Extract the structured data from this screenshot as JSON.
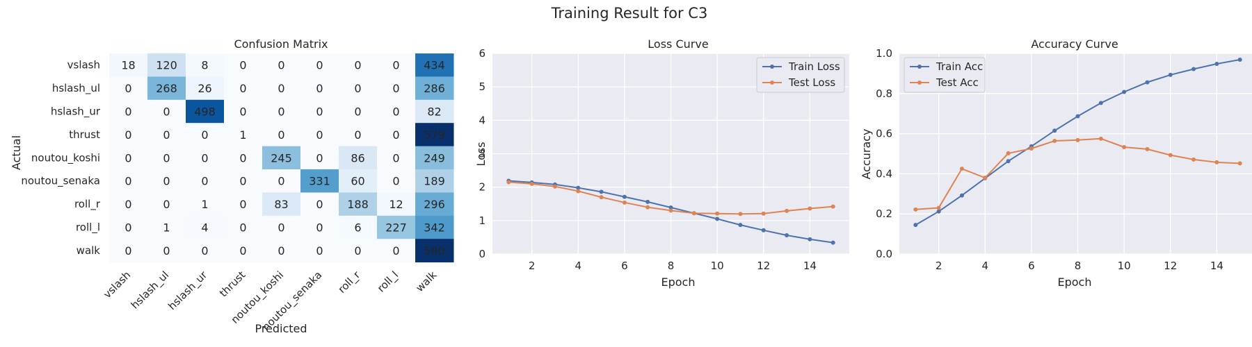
{
  "suptitle": "Training Result for C3",
  "colors": {
    "train": "#4c72b0",
    "test": "#dd8452",
    "plot_bg": "#eaeaf2",
    "grid": "#ffffff",
    "cmap_low": "#f7fbff",
    "cmap_high": "#08306b"
  },
  "chart_data": [
    {
      "type": "heatmap",
      "title": "Confusion Matrix",
      "xlabel": "Predicted",
      "ylabel": "Actual",
      "labels": [
        "vslash",
        "hslash_ul",
        "hslash_ur",
        "thrust",
        "noutou_koshi",
        "noutou_senaka",
        "roll_r",
        "roll_l",
        "walk"
      ],
      "matrix": [
        [
          18,
          120,
          8,
          0,
          0,
          0,
          0,
          0,
          434
        ],
        [
          0,
          268,
          26,
          0,
          0,
          0,
          0,
          0,
          286
        ],
        [
          0,
          0,
          498,
          0,
          0,
          0,
          0,
          0,
          82
        ],
        [
          0,
          0,
          0,
          1,
          0,
          0,
          0,
          0,
          579
        ],
        [
          0,
          0,
          0,
          0,
          245,
          0,
          86,
          0,
          249
        ],
        [
          0,
          0,
          0,
          0,
          0,
          331,
          60,
          0,
          189
        ],
        [
          0,
          0,
          1,
          0,
          83,
          0,
          188,
          12,
          296
        ],
        [
          0,
          1,
          4,
          0,
          0,
          0,
          6,
          227,
          342
        ],
        [
          0,
          0,
          0,
          0,
          0,
          0,
          0,
          0,
          580
        ]
      ],
      "vmax": 580
    },
    {
      "type": "line",
      "title": "Loss Curve",
      "xlabel": "Epoch",
      "ylabel": "Loss",
      "x": [
        1,
        2,
        3,
        4,
        5,
        6,
        7,
        8,
        9,
        10,
        11,
        12,
        13,
        14,
        15
      ],
      "xlim": [
        0.3,
        15.7
      ],
      "ylim": [
        0,
        6
      ],
      "xticks": [
        2,
        4,
        6,
        8,
        10,
        12,
        14
      ],
      "yticks": [
        0,
        1,
        2,
        3,
        4,
        5,
        6
      ],
      "legend_position": "upper right",
      "series": [
        {
          "name": "Train Loss",
          "values": [
            2.19,
            2.14,
            2.08,
            1.98,
            1.86,
            1.71,
            1.56,
            1.39,
            1.22,
            1.05,
            0.87,
            0.71,
            0.56,
            0.44,
            0.34
          ]
        },
        {
          "name": "Test Loss",
          "values": [
            2.15,
            2.1,
            2.02,
            1.88,
            1.7,
            1.54,
            1.4,
            1.3,
            1.22,
            1.21,
            1.2,
            1.21,
            1.29,
            1.36,
            1.42
          ]
        }
      ]
    },
    {
      "type": "line",
      "title": "Accuracy Curve",
      "xlabel": "Epoch",
      "ylabel": "Accuracy",
      "x": [
        1,
        2,
        3,
        4,
        5,
        6,
        7,
        8,
        9,
        10,
        11,
        12,
        13,
        14,
        15
      ],
      "xlim": [
        0.3,
        15.7
      ],
      "ylim": [
        0,
        1.0
      ],
      "xticks": [
        2,
        4,
        6,
        8,
        10,
        12,
        14
      ],
      "yticks": [
        0.0,
        0.2,
        0.4,
        0.6,
        0.8,
        1.0
      ],
      "ytick_labels": [
        "0.0",
        "0.2",
        "0.4",
        "0.6",
        "0.8",
        "1.0"
      ],
      "legend_position": "upper left",
      "series": [
        {
          "name": "Train Acc",
          "values": [
            0.145,
            0.212,
            0.292,
            0.378,
            0.463,
            0.537,
            0.615,
            0.687,
            0.753,
            0.808,
            0.856,
            0.893,
            0.922,
            0.948,
            0.969
          ]
        },
        {
          "name": "Test Acc",
          "values": [
            0.222,
            0.23,
            0.425,
            0.38,
            0.502,
            0.526,
            0.564,
            0.568,
            0.575,
            0.533,
            0.523,
            0.493,
            0.471,
            0.457,
            0.452
          ]
        }
      ]
    }
  ]
}
